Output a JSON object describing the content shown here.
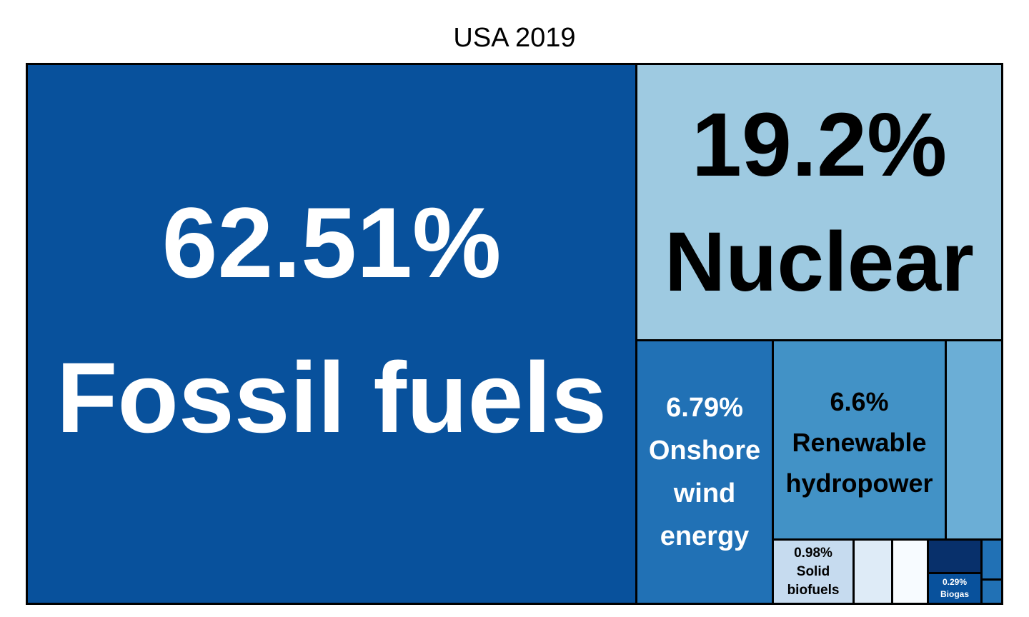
{
  "chart_data": {
    "type": "treemap",
    "title": "USA 2019",
    "colors": {
      "fossil": "#08519c",
      "nuclear": "#9ecae1",
      "wind": "#2171b5",
      "hydro": "#4292c6",
      "other": "#6baed6",
      "solid": "#c6dbef",
      "small1": "#deebf7",
      "small2": "#f7fbff",
      "small3": "#08306b",
      "biogas": "#08519c",
      "small4": "#2171b5",
      "small5": "#2171b5"
    },
    "tiles": [
      {
        "value": "62.51%",
        "label": "Fossil fuels"
      },
      {
        "value": "19.2%",
        "label": "Nuclear"
      },
      {
        "value": "6.79%",
        "label": "Onshore wind energy"
      },
      {
        "value": "6.6%",
        "label": "Renewable hydropower"
      },
      {
        "value": "0.98%",
        "label": "Solid biofuels"
      },
      {
        "value": "0.29%",
        "label": "Biogas"
      }
    ]
  }
}
